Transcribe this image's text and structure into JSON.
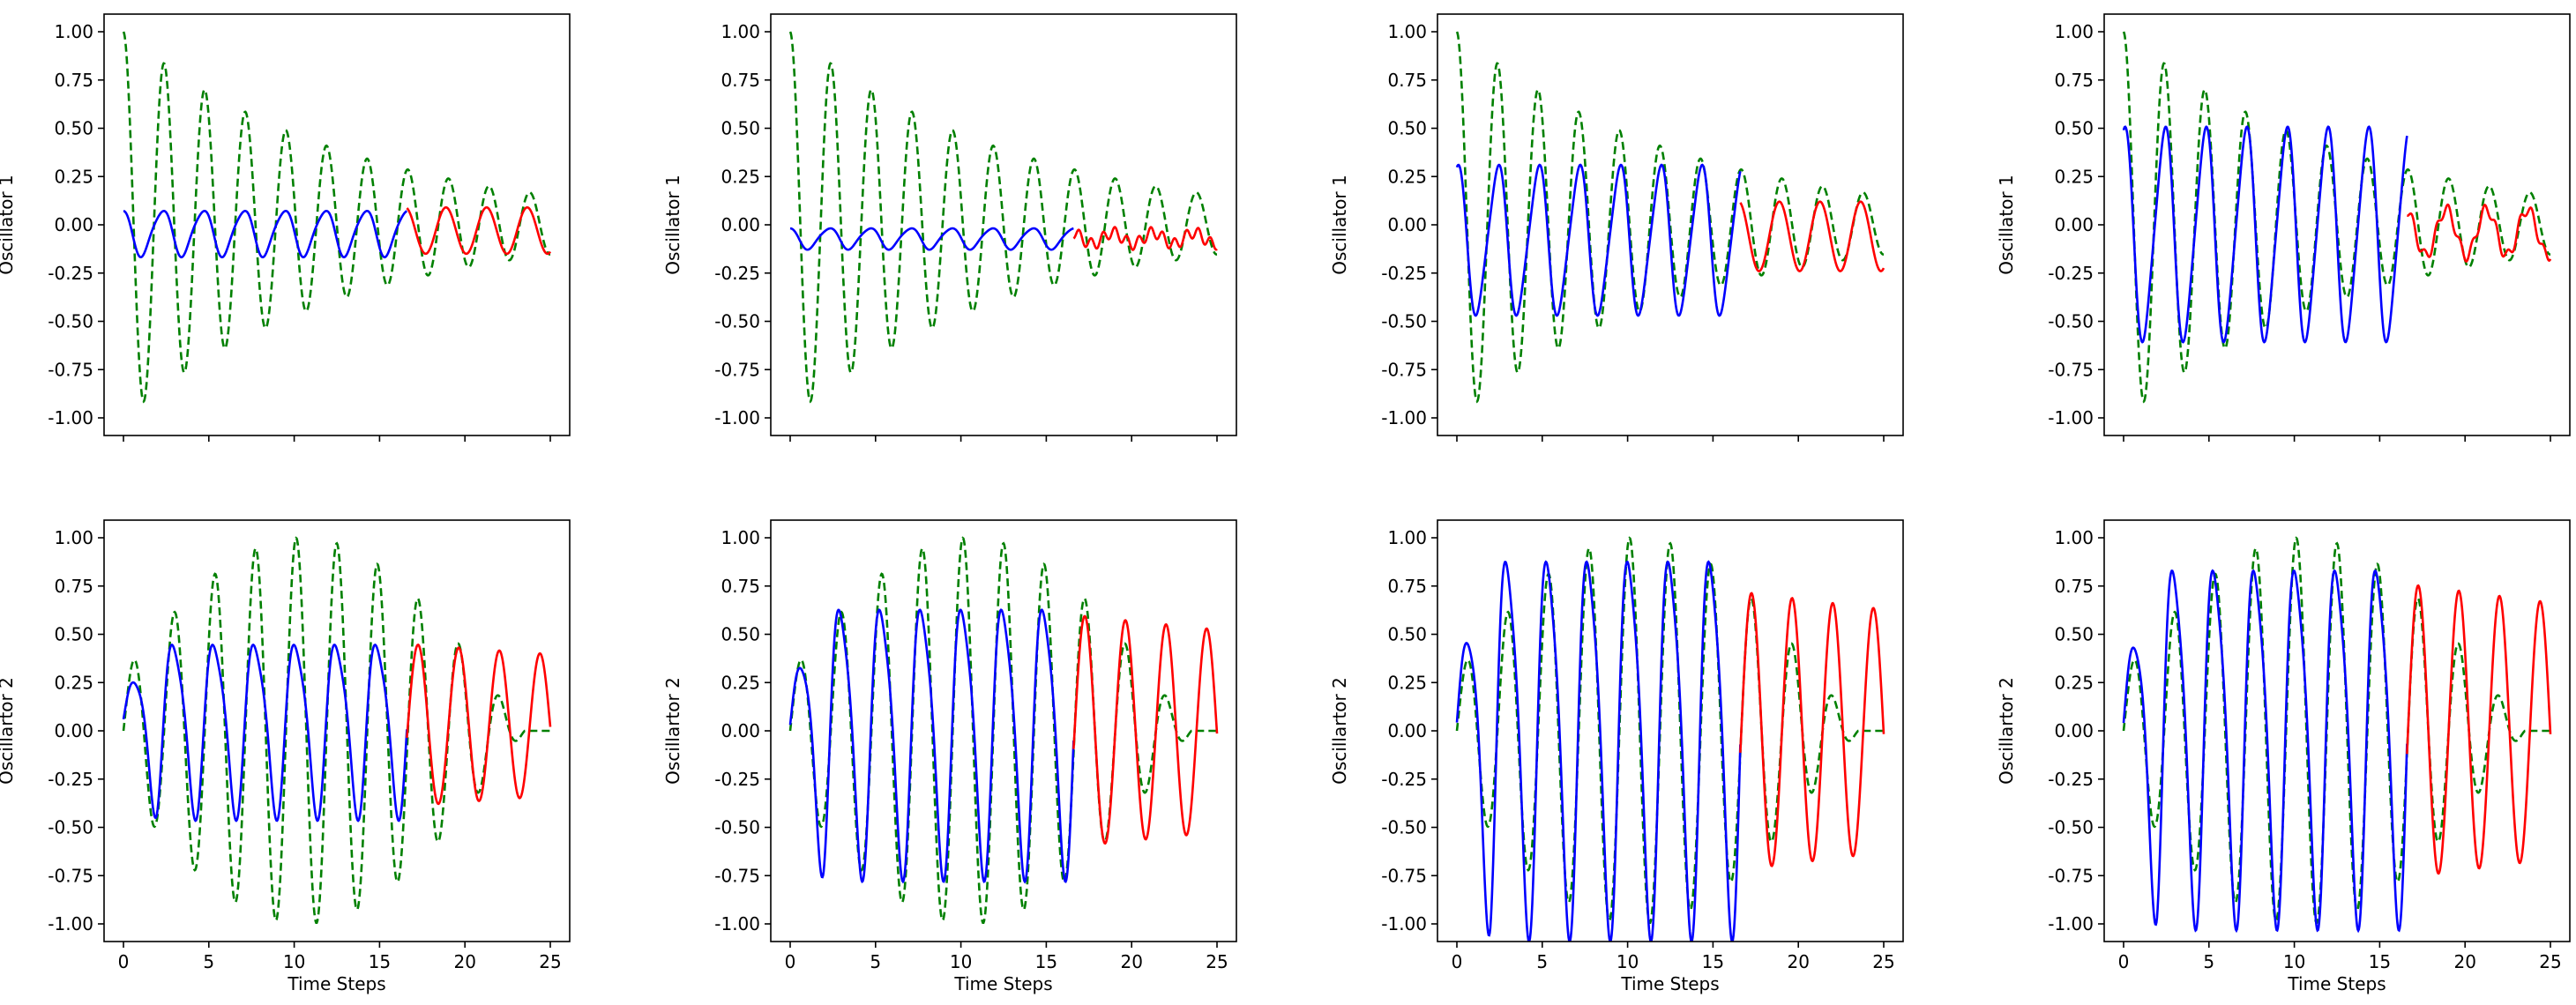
{
  "chart_data": {
    "type": "line",
    "layout": {
      "rows": 2,
      "cols": 4
    },
    "series_styles": {
      "ground_truth": {
        "color": "#008000",
        "dash": "dashed"
      },
      "fit": {
        "color": "#0000ff",
        "dash": "solid"
      },
      "forecast": {
        "color": "#ff0000",
        "dash": "solid"
      }
    },
    "x_range": [
      0,
      25
    ],
    "split_x": 16.6,
    "xticks": [
      0,
      5,
      10,
      15,
      20,
      25
    ],
    "yticks": [
      -1.0,
      -0.75,
      -0.5,
      -0.25,
      0.0,
      0.25,
      0.5,
      0.75,
      1.0
    ],
    "ytick_labels": [
      "-1.00",
      "-0.75",
      "-0.50",
      "-0.25",
      "0.00",
      "0.25",
      "0.50",
      "0.75",
      "1.00"
    ],
    "xtick_labels": [
      "0",
      "5",
      "10",
      "15",
      "20",
      "25"
    ],
    "xlabel": "Time Steps",
    "ylabels": {
      "row1": "Oscillator 1",
      "row2": "Oscillartor 2"
    },
    "ground_truth": {
      "osc1": {
        "amplitude": 1.0,
        "decay": 0.075,
        "period": 2.38,
        "form": "cosine"
      },
      "osc2": {
        "amplitude": 1.0,
        "period": 2.38,
        "form": "sine",
        "envelope_peak_x": 10.5
      }
    },
    "panels": [
      {
        "row": 1,
        "col": 1,
        "fit": {
          "center": -0.04,
          "amplitude": 0.13,
          "phase": 0.3
        },
        "forecast": {
          "center": -0.03,
          "amplitude": 0.12
        }
      },
      {
        "row": 1,
        "col": 2,
        "fit": {
          "center": -0.07,
          "amplitude": 0.06,
          "phase": 0.3
        },
        "forecast": {
          "center": -0.07,
          "amplitude": 0.03
        }
      },
      {
        "row": 1,
        "col": 3,
        "fit": {
          "center": -0.08,
          "amplitude": 0.42,
          "phase": 0.0
        },
        "forecast": {
          "center": -0.06,
          "amplitude": 0.18
        }
      },
      {
        "row": 1,
        "col": 4,
        "fit": {
          "center": -0.05,
          "amplitude": 0.6,
          "phase": 0.0
        },
        "forecast": {
          "center": -0.04,
          "amplitude": 0.12
        }
      },
      {
        "row": 2,
        "col": 1,
        "fit": {
          "center": 0.04,
          "amplitude": 0.44
        },
        "forecast": {
          "center": 0.03,
          "amplitude": 0.42
        }
      },
      {
        "row": 2,
        "col": 2,
        "fit": {
          "center": 0.0,
          "amplitude": 0.68
        },
        "forecast": {
          "center": 0.0,
          "amplitude": 0.6
        }
      },
      {
        "row": 2,
        "col": 3,
        "fit": {
          "center": 0.0,
          "amplitude": 0.95
        },
        "forecast": {
          "center": 0.0,
          "amplitude": 0.72
        }
      },
      {
        "row": 2,
        "col": 4,
        "fit": {
          "center": 0.0,
          "amplitude": 0.9
        },
        "forecast": {
          "center": 0.0,
          "amplitude": 0.76
        }
      }
    ]
  }
}
